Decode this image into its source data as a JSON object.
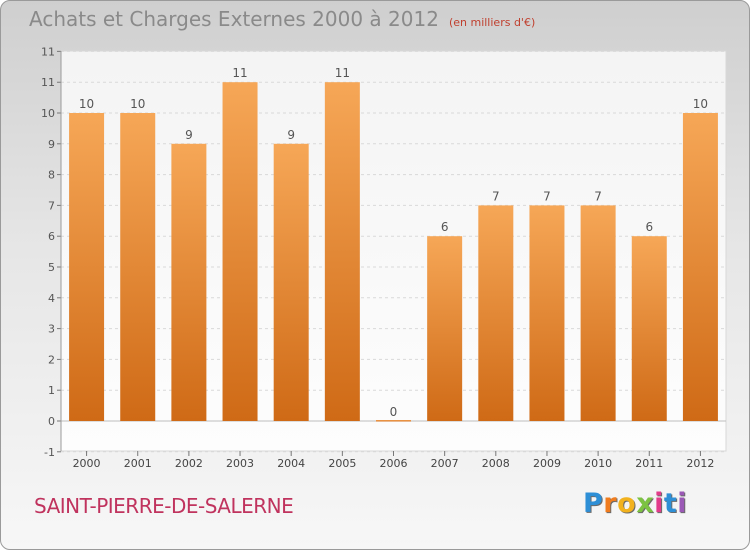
{
  "header": {
    "title": "Achats et Charges Externes 2000 à 2012",
    "subtitle": "(en milliers d'€)"
  },
  "footer": {
    "city": "SAINT-PIERRE-DE-SALERNE",
    "logo_letters": [
      "P",
      "r",
      "o",
      "x",
      "i",
      "t",
      "i"
    ],
    "logo_colors": [
      "#2e8fd6",
      "#f07c1e",
      "#f2b21e",
      "#7cc242",
      "#e23b8a",
      "#2e8fd6",
      "#9b59b6"
    ]
  },
  "chart_data": {
    "type": "bar",
    "title": "Achats et Charges Externes 2000 à 2012",
    "subtitle": "(en milliers d'€)",
    "categories": [
      "2000",
      "2001",
      "2002",
      "2003",
      "2004",
      "2005",
      "2006",
      "2007",
      "2008",
      "2009",
      "2010",
      "2011",
      "2012"
    ],
    "values": [
      10,
      10,
      9,
      11,
      9,
      11,
      0,
      6,
      7,
      7,
      7,
      6,
      10
    ],
    "ylim": [
      -1,
      12
    ],
    "yticks": [
      "-1",
      "0",
      "1",
      "2",
      "3",
      "4",
      "5",
      "6",
      "7",
      "8",
      "9",
      "10",
      "11",
      "11"
    ],
    "grid": true,
    "bar_color": "#f29a45",
    "bar_color_dark": "#d8731f",
    "legend": "none"
  }
}
